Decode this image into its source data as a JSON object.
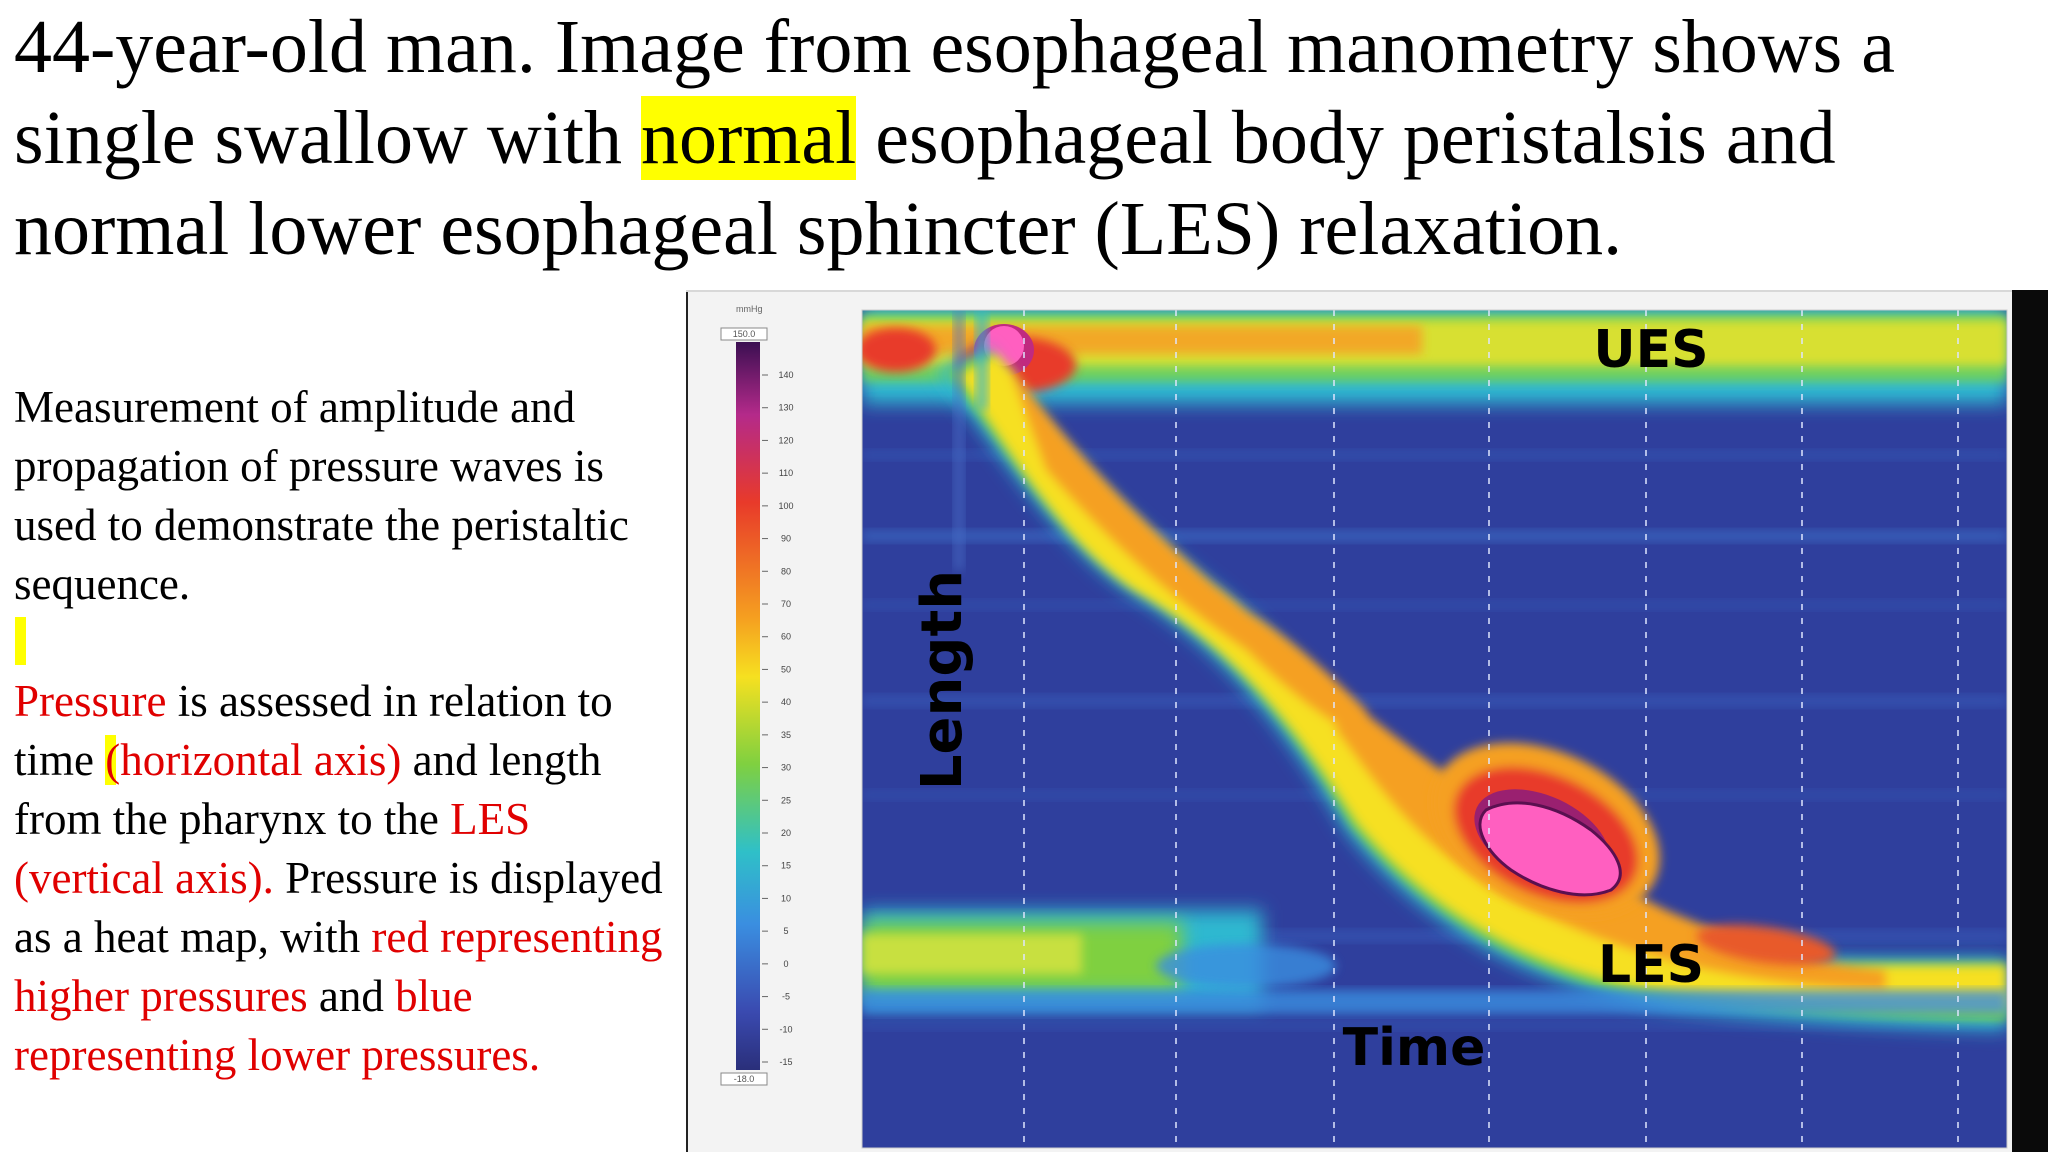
{
  "title": {
    "before": "44-year-old man. Image from esophageal manometry shows a single swallow with ",
    "highlight": "normal",
    "after": " esophageal body peristalsis and normal lower esophageal sphincter (LES) relaxation."
  },
  "paragraph1": "Measurement of amplitude and propagation of pressure waves is used to demonstrate the peristaltic sequence.",
  "paragraph2": {
    "s1": "Pressure",
    "s2": " is assessed in relation to time ",
    "s3": "(horizontal axis)",
    "s4": " and length from the pharynx to the ",
    "s5": "LES (vertical axis).",
    "s6": " Pressure is displayed as a heat map, with ",
    "s7": "red representing higher pressures",
    "s8": " and ",
    "s9": "blue representing lower pressures."
  },
  "figure": {
    "unit": "mmHg",
    "scale_max": "150.0",
    "scale_min": "-18.0",
    "scale_ticks": [
      "140",
      "130",
      "120",
      "110",
      "100",
      "90",
      "80",
      "70",
      "60",
      "50",
      "40",
      "35",
      "30",
      "25",
      "20",
      "15",
      "10",
      "5",
      "0",
      "-5",
      "-10",
      "-15"
    ],
    "label_length": "Length",
    "label_time": "Time",
    "label_ues": "UES",
    "label_les": "LES"
  },
  "colors": {
    "highlight": "#ffff00",
    "red_text": "#e00000",
    "low_pressure": "#2e3f9e",
    "high_pressure": "#ff5fc0"
  }
}
